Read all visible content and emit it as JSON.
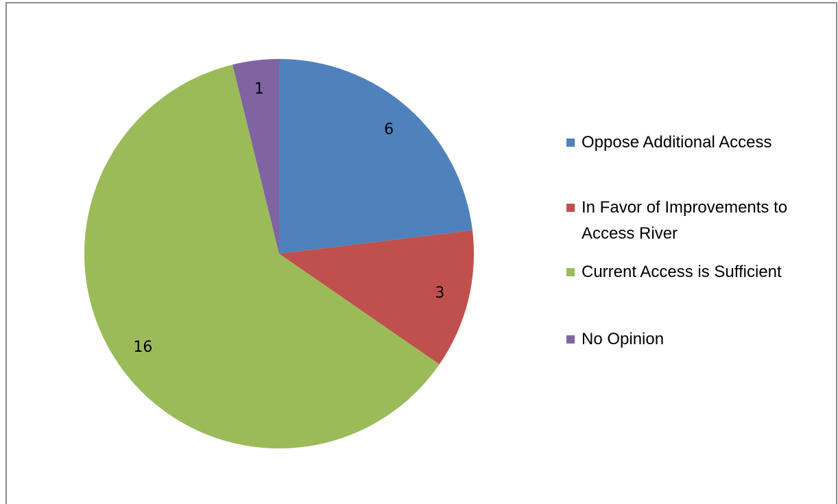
{
  "chart_data": {
    "type": "pie",
    "categories": [
      "Oppose Additional Access",
      "In Favor of Improvements to Access River",
      "Current Access is Sufficient",
      "No Opinion"
    ],
    "values": [
      6,
      3,
      16,
      1
    ],
    "colors": [
      "#4f81bd",
      "#c0504d",
      "#9bbb59",
      "#8064a2"
    ]
  }
}
